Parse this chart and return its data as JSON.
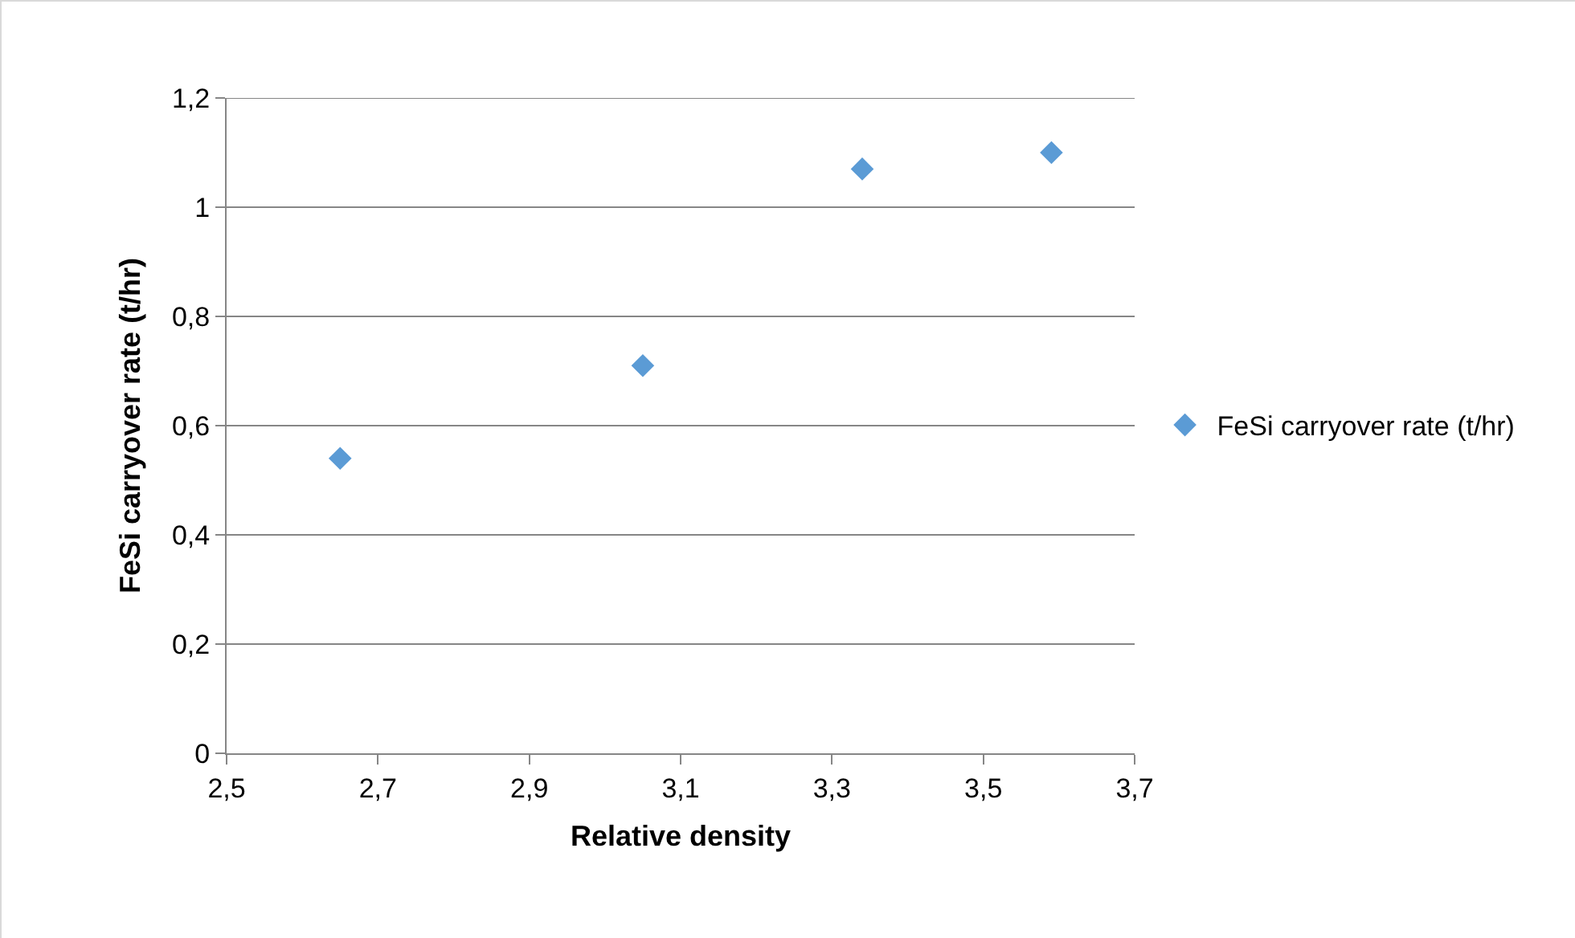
{
  "chart_data": {
    "type": "scatter",
    "xlabel": "Relative density",
    "ylabel": "FeSi carryover rate (t/hr)",
    "x": [
      2.65,
      3.05,
      3.34,
      3.59
    ],
    "series": [
      {
        "name": "FeSi carryover rate (t/hr)",
        "color": "#5b9bd5",
        "values": [
          0.54,
          0.71,
          1.07,
          1.1
        ]
      }
    ],
    "xlim": [
      2.5,
      3.7
    ],
    "xticks": [
      {
        "value": 2.5,
        "label": "2,5"
      },
      {
        "value": 2.7,
        "label": "2,7"
      },
      {
        "value": 2.9,
        "label": "2,9"
      },
      {
        "value": 3.1,
        "label": "3,1"
      },
      {
        "value": 3.3,
        "label": "3,3"
      },
      {
        "value": 3.5,
        "label": "3,5"
      },
      {
        "value": 3.7,
        "label": "3,7"
      }
    ],
    "ylim": [
      0,
      1.2
    ],
    "yticks": [
      0,
      {
        "value": 0.2,
        "label": "0,2"
      },
      {
        "value": 0.4,
        "label": "0,4"
      },
      {
        "value": 0.6,
        "label": "0,6"
      },
      {
        "value": 0.8,
        "label": "0,8"
      },
      1,
      {
        "value": 1.2,
        "label": "1,2"
      }
    ],
    "grid": "y",
    "legend": "right",
    "marker": "diamond"
  }
}
